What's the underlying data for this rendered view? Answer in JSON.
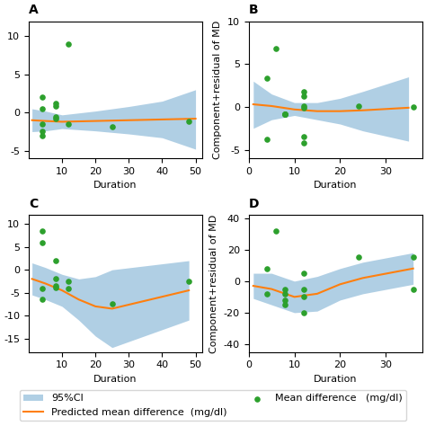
{
  "chart_data": [
    {
      "type": "scatter",
      "title": "A",
      "xlabel": "Duration",
      "xlim": [
        0,
        52
      ],
      "ylim": [
        -6,
        12
      ],
      "xticks": [
        10,
        20,
        30,
        40,
        50
      ],
      "yticks": [
        -5,
        0,
        5,
        10
      ],
      "legend": "lower center",
      "series": [
        {
          "name": "95%CI",
          "type": "band",
          "x": [
            1,
            5,
            10,
            20,
            30,
            40,
            50
          ],
          "lower": [
            -2.5,
            -2.4,
            -2.1,
            -2.4,
            -2.8,
            -3.3,
            -4.8
          ],
          "upper": [
            0.5,
            0.2,
            -0.3,
            0.2,
            0.8,
            1.5,
            3.0
          ]
        },
        {
          "name": "Predicted mean difference  (mg/dl)",
          "type": "line",
          "x": [
            1,
            5,
            10,
            20,
            30,
            40,
            50
          ],
          "values": [
            -1.0,
            -1.1,
            -1.2,
            -1.1,
            -1.0,
            -0.9,
            -0.8
          ]
        },
        {
          "name": "Mean difference   (mg/dl)",
          "type": "scatter",
          "x": [
            4,
            4,
            8,
            8,
            8,
            8,
            4,
            12,
            25,
            48,
            4,
            12,
            4
          ],
          "values": [
            2.0,
            -1.5,
            1.2,
            0.8,
            -0.5,
            -0.8,
            -2.5,
            -1.5,
            -1.8,
            -1.2,
            -3.0,
            9.0,
            0.5
          ]
        }
      ]
    },
    {
      "type": "scatter",
      "title": "B",
      "xlabel": "Duration",
      "ylabel": "Component+residual of MD",
      "xlim": [
        0,
        38
      ],
      "ylim": [
        -6,
        10
      ],
      "xticks": [
        0,
        10,
        20,
        30
      ],
      "yticks": [
        -5,
        0,
        5,
        10
      ],
      "legend": "lower center",
      "series": [
        {
          "name": "95%CI",
          "type": "band",
          "x": [
            1,
            5,
            10,
            15,
            20,
            25,
            35
          ],
          "lower": [
            -2.5,
            -1.5,
            -1.0,
            -1.5,
            -2.0,
            -2.8,
            -4.0
          ],
          "upper": [
            3.0,
            1.5,
            0.5,
            0.5,
            1.0,
            1.8,
            3.5
          ]
        },
        {
          "name": "Predicted mean difference  (mg/dl)",
          "type": "line",
          "x": [
            1,
            5,
            10,
            15,
            20,
            25,
            35
          ],
          "values": [
            0.3,
            0.1,
            -0.3,
            -0.5,
            -0.5,
            -0.4,
            -0.1
          ]
        },
        {
          "name": "Mean difference   (mg/dl)",
          "type": "scatter",
          "x": [
            4,
            4,
            6,
            8,
            8,
            8,
            8,
            12,
            12,
            12,
            12,
            12,
            12,
            24,
            36
          ],
          "values": [
            3.3,
            -3.8,
            6.8,
            -0.8,
            -0.8,
            -0.8,
            -0.8,
            1.8,
            1.2,
            0.1,
            -0.1,
            -3.5,
            -4.2,
            0.1,
            0.0
          ]
        }
      ]
    },
    {
      "type": "scatter",
      "title": "C",
      "xlabel": "Duration",
      "xlim": [
        0,
        52
      ],
      "ylim": [
        -18,
        12
      ],
      "xticks": [
        10,
        20,
        30,
        40,
        50
      ],
      "yticks": [
        -15,
        -10,
        -5,
        0,
        5,
        10
      ],
      "legend": "lower center",
      "series": [
        {
          "name": "95%CI",
          "type": "band",
          "x": [
            1,
            5,
            10,
            15,
            20,
            25,
            48
          ],
          "lower": [
            -5.5,
            -6.5,
            -8.0,
            -11.0,
            -14.5,
            -17.0,
            -11.0
          ],
          "upper": [
            1.5,
            0.5,
            -1.0,
            -2.0,
            -1.5,
            0.0,
            2.0
          ]
        },
        {
          "name": "Predicted mean difference  (mg/dl)",
          "type": "line",
          "x": [
            1,
            5,
            10,
            15,
            20,
            25,
            48
          ],
          "values": [
            -2.0,
            -3.0,
            -4.5,
            -6.5,
            -8.0,
            -8.5,
            -4.5
          ]
        },
        {
          "name": "Mean difference   (mg/dl)",
          "type": "scatter",
          "x": [
            4,
            4,
            8,
            8,
            8,
            8,
            12,
            12,
            25,
            48,
            4,
            4
          ],
          "values": [
            6.0,
            -4.0,
            2.0,
            -2.0,
            -3.5,
            -3.8,
            -4.0,
            -2.5,
            -7.5,
            -2.5,
            8.5,
            -6.5
          ]
        }
      ]
    },
    {
      "type": "scatter",
      "title": "D",
      "xlabel": "Duration",
      "ylabel": "Component+residual of MD",
      "xlim": [
        0,
        38
      ],
      "ylim": [
        -45,
        42
      ],
      "xticks": [
        0,
        10,
        20,
        30
      ],
      "yticks": [
        -40,
        -20,
        0,
        20,
        40
      ],
      "legend": "lower center",
      "series": [
        {
          "name": "95%CI",
          "type": "band",
          "x": [
            1,
            5,
            10,
            15,
            20,
            25,
            36
          ],
          "lower": [
            -11.0,
            -15.0,
            -20.0,
            -19.0,
            -12.0,
            -8.0,
            -2.0
          ],
          "upper": [
            5.0,
            5.0,
            0.0,
            3.0,
            8.0,
            12.0,
            18.0
          ]
        },
        {
          "name": "Predicted mean difference  (mg/dl)",
          "type": "line",
          "x": [
            1,
            5,
            10,
            15,
            20,
            25,
            36
          ],
          "values": [
            -3.0,
            -5.0,
            -10.0,
            -8.0,
            -2.0,
            2.0,
            8.0
          ]
        },
        {
          "name": "Mean difference   (mg/dl)",
          "type": "scatter",
          "x": [
            4,
            4,
            6,
            8,
            8,
            8,
            8,
            12,
            12,
            12,
            12,
            24,
            36,
            36
          ],
          "values": [
            8.0,
            -8.0,
            32.0,
            -8.0,
            -5.0,
            -12.0,
            -15.0,
            5.0,
            -5.0,
            -10.0,
            -20.0,
            15.0,
            15.0,
            -5.0
          ]
        }
      ]
    }
  ]
}
